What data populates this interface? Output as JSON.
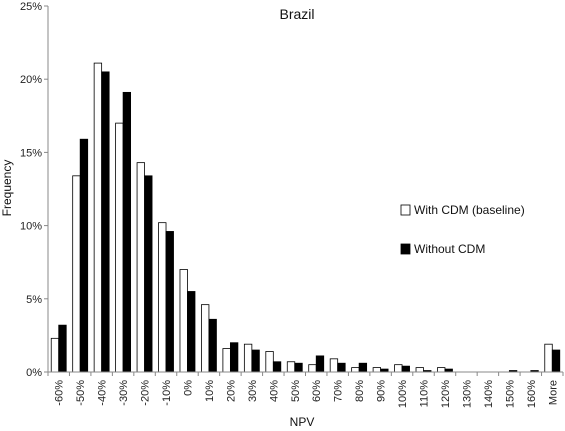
{
  "chart_data": {
    "type": "bar",
    "title": "Brazil",
    "xlabel": "NPV",
    "ylabel": "Frequency",
    "ylim": [
      0,
      25
    ],
    "yticks": [
      "0%",
      "5%",
      "10%",
      "15%",
      "20%",
      "25%"
    ],
    "ytick_values": [
      0,
      5,
      10,
      15,
      20,
      25
    ],
    "grid": false,
    "legend_position": "right",
    "categories": [
      "-60%",
      "-50%",
      "-40%",
      "-30%",
      "-20%",
      "-10%",
      "0%",
      "10%",
      "20%",
      "30%",
      "40%",
      "50%",
      "60%",
      "70%",
      "80%",
      "90%",
      "100%",
      "110%",
      "120%",
      "130%",
      "140%",
      "150%",
      "160%",
      "More"
    ],
    "series": [
      {
        "name": "With CDM (baseline)",
        "color": "#ffffff",
        "values": [
          2.3,
          13.4,
          21.1,
          17.0,
          14.3,
          10.2,
          7.0,
          4.6,
          1.6,
          1.9,
          1.4,
          0.7,
          0.5,
          0.9,
          0.3,
          0.3,
          0.5,
          0.3,
          0.3,
          0.0,
          0.0,
          0.0,
          0.0,
          1.9
        ]
      },
      {
        "name": "Without CDM",
        "color": "#000000",
        "values": [
          3.2,
          15.9,
          20.5,
          19.1,
          13.4,
          9.6,
          5.5,
          3.6,
          2.0,
          1.5,
          0.7,
          0.6,
          1.1,
          0.6,
          0.6,
          0.2,
          0.4,
          0.1,
          0.2,
          0.0,
          0.0,
          0.1,
          0.1,
          1.5
        ]
      }
    ]
  }
}
